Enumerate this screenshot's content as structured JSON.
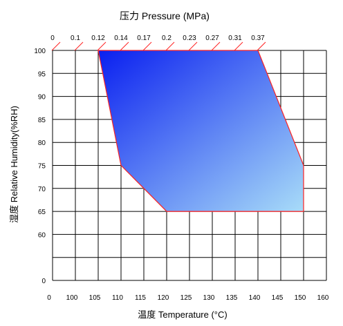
{
  "chart_data": {
    "type": "area",
    "title": "压力 Pressure (MPa)",
    "xlabel": "温度 Temperature (°C)",
    "ylabel": "湿度 Relative Humidity(%RH)",
    "x_ticks": [
      "0",
      "100",
      "105",
      "110",
      "115",
      "120",
      "125",
      "130",
      "135",
      "140",
      "145",
      "150",
      "160"
    ],
    "y_ticks": [
      "100",
      "95",
      "90",
      "85",
      "80",
      "75",
      "70",
      "65",
      "60",
      "",
      "0"
    ],
    "pressure_ticks": [
      "0",
      "0.1",
      "0.12",
      "0.14",
      "0.17",
      "0.2",
      "0.23",
      "0.27",
      "0.31",
      "0.37"
    ],
    "region": {
      "x": [
        105,
        140,
        150,
        150,
        120,
        110
      ],
      "y": [
        100,
        100,
        75,
        65,
        65,
        75
      ]
    },
    "grid": true,
    "colors": {
      "fill_top": "#0a1ff0",
      "fill_bottom": "#a8dcf8",
      "outline": "#ff2020",
      "pressure_tick": "#ff2020"
    }
  }
}
